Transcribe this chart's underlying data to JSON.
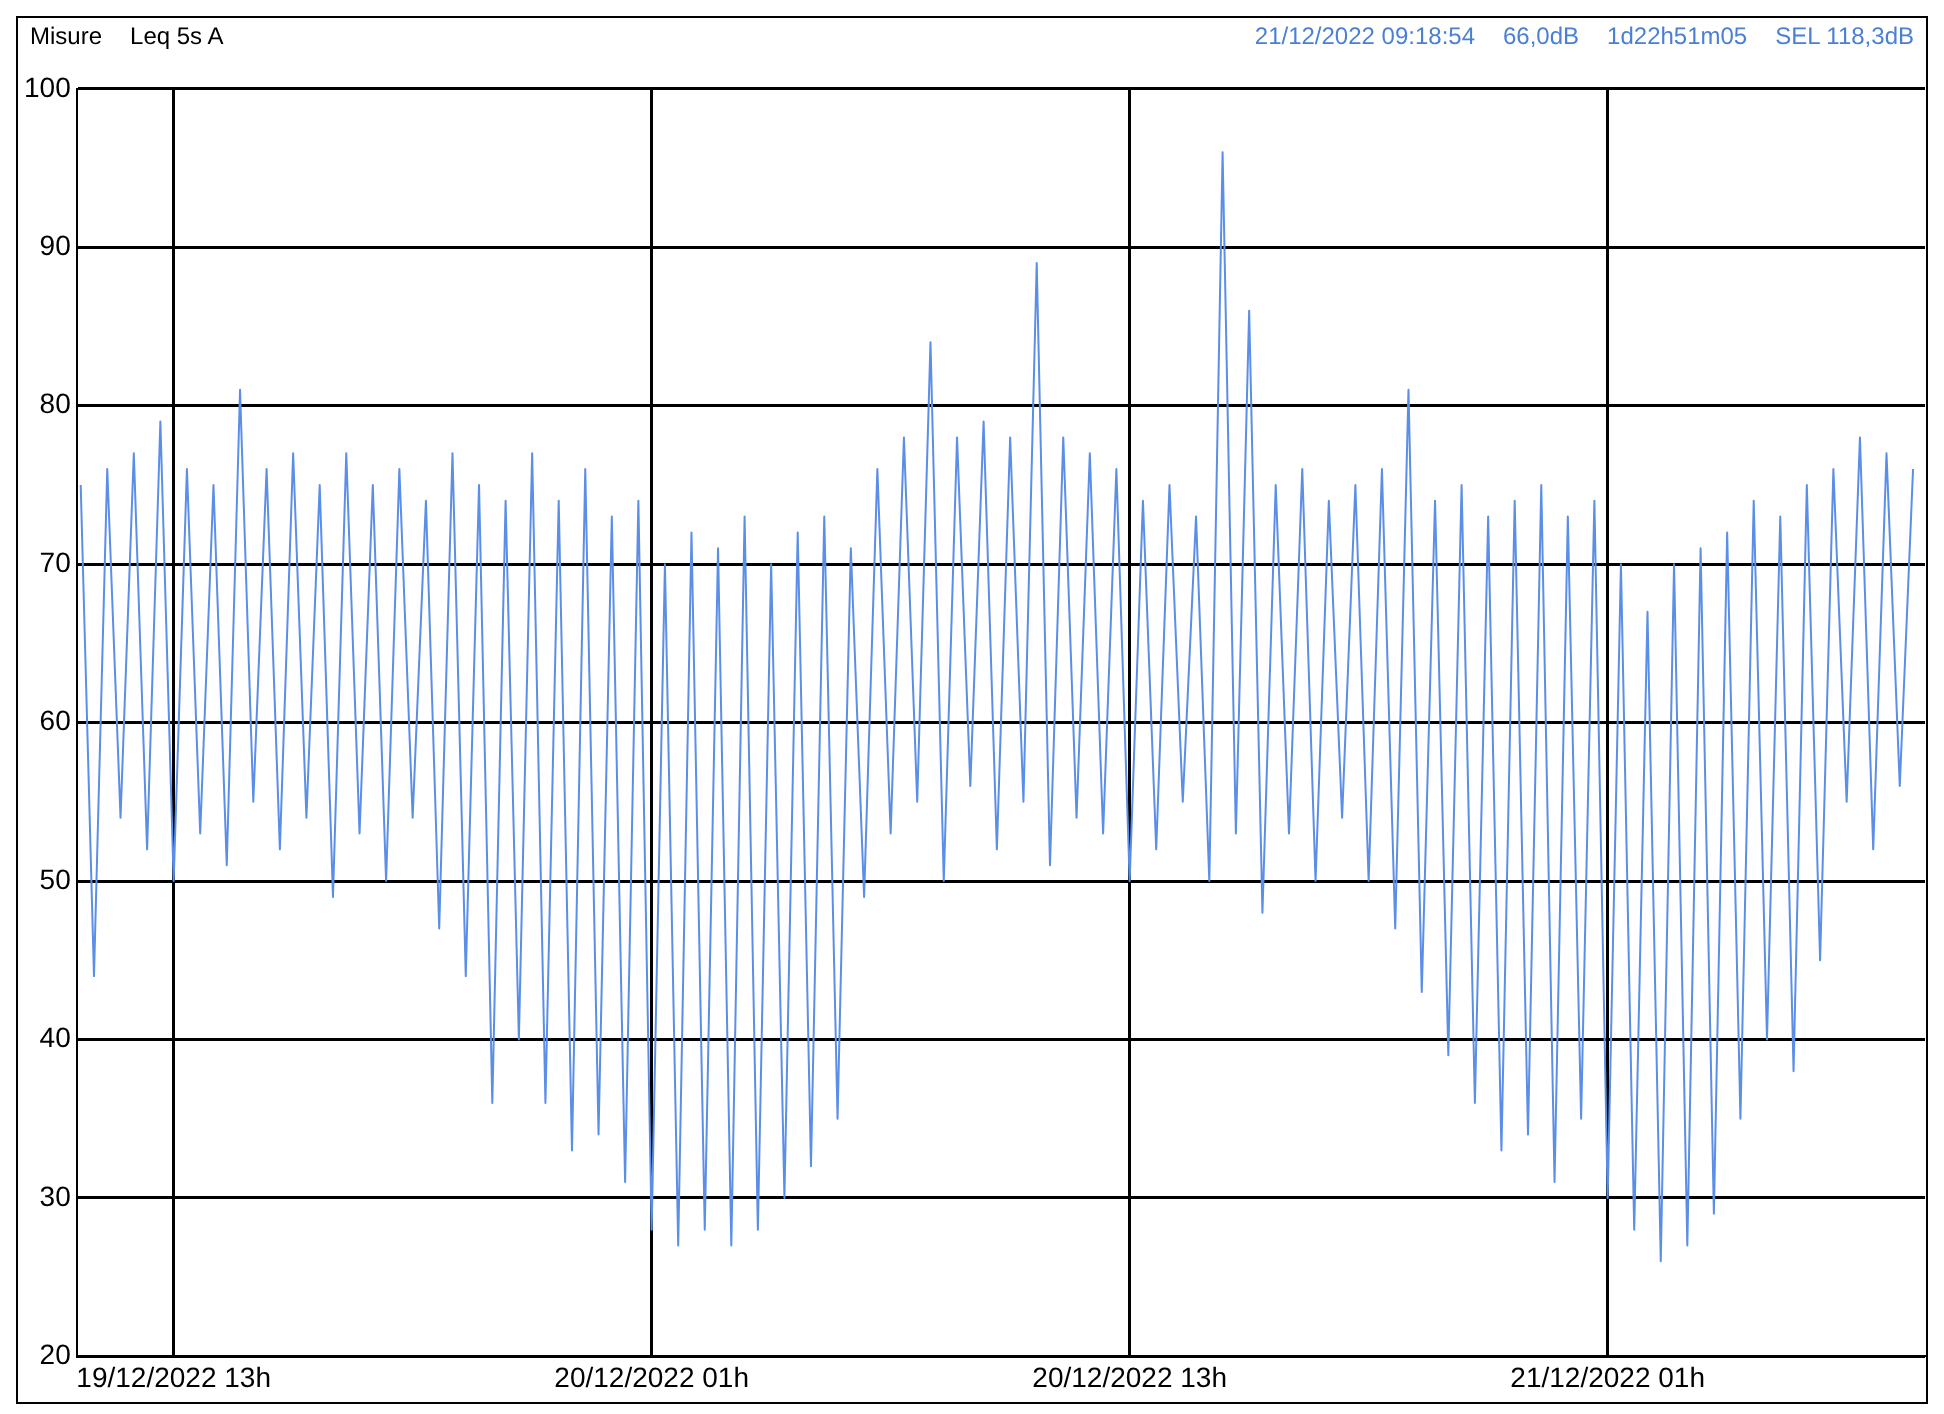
{
  "chart_data": {
    "type": "line",
    "title": "Misure",
    "subtitle": "Leq 5s A",
    "annotations": [
      "21/12/2022 09:18:54",
      "66,0dB",
      "1d22h51m05",
      "SEL 118,3dB"
    ],
    "xlim": [
      "2022-12-19T10:34",
      "2022-12-21T08:58"
    ],
    "xticks": [
      {
        "value": "2022-12-19T13:00",
        "label": "19/12/2022 13h"
      },
      {
        "value": "2022-12-20T01:00",
        "label": "20/12/2022 01h"
      },
      {
        "value": "2022-12-20T13:00",
        "label": "20/12/2022 13h"
      },
      {
        "value": "2022-12-21T01:00",
        "label": "21/12/2022 01h"
      }
    ],
    "ylim": [
      20,
      100
    ],
    "yticks": [
      20,
      30,
      40,
      50,
      60,
      70,
      80,
      90,
      100
    ],
    "grid": true,
    "legend": false,
    "marker": "none",
    "line_style": "solid",
    "series": [
      {
        "color": "#5b8ee6",
        "x": [
          "2022-12-19T10:40",
          "2022-12-19T11:00",
          "2022-12-19T11:20",
          "2022-12-19T11:40",
          "2022-12-19T12:00",
          "2022-12-19T12:20",
          "2022-12-19T12:40",
          "2022-12-19T13:00",
          "2022-12-19T13:20",
          "2022-12-19T13:40",
          "2022-12-19T14:00",
          "2022-12-19T14:20",
          "2022-12-19T14:40",
          "2022-12-19T15:00",
          "2022-12-19T15:20",
          "2022-12-19T15:40",
          "2022-12-19T16:00",
          "2022-12-19T16:20",
          "2022-12-19T16:40",
          "2022-12-19T17:00",
          "2022-12-19T17:20",
          "2022-12-19T17:40",
          "2022-12-19T18:00",
          "2022-12-19T18:20",
          "2022-12-19T18:40",
          "2022-12-19T19:00",
          "2022-12-19T19:20",
          "2022-12-19T19:40",
          "2022-12-19T20:00",
          "2022-12-19T20:20",
          "2022-12-19T20:40",
          "2022-12-19T21:00",
          "2022-12-19T21:20",
          "2022-12-19T21:40",
          "2022-12-19T22:00",
          "2022-12-19T22:20",
          "2022-12-19T22:40",
          "2022-12-19T23:00",
          "2022-12-19T23:20",
          "2022-12-19T23:40",
          "2022-12-20T00:00",
          "2022-12-20T00:20",
          "2022-12-20T00:40",
          "2022-12-20T01:00",
          "2022-12-20T01:20",
          "2022-12-20T01:40",
          "2022-12-20T02:00",
          "2022-12-20T02:20",
          "2022-12-20T02:40",
          "2022-12-20T03:00",
          "2022-12-20T03:20",
          "2022-12-20T03:40",
          "2022-12-20T04:00",
          "2022-12-20T04:20",
          "2022-12-20T04:40",
          "2022-12-20T05:00",
          "2022-12-20T05:20",
          "2022-12-20T05:40",
          "2022-12-20T06:00",
          "2022-12-20T06:20",
          "2022-12-20T06:40",
          "2022-12-20T07:00",
          "2022-12-20T07:20",
          "2022-12-20T07:40",
          "2022-12-20T08:00",
          "2022-12-20T08:20",
          "2022-12-20T08:40",
          "2022-12-20T09:00",
          "2022-12-20T09:20",
          "2022-12-20T09:40",
          "2022-12-20T10:00",
          "2022-12-20T10:20",
          "2022-12-20T10:40",
          "2022-12-20T11:00",
          "2022-12-20T11:20",
          "2022-12-20T11:40",
          "2022-12-20T12:00",
          "2022-12-20T12:20",
          "2022-12-20T12:40",
          "2022-12-20T13:00",
          "2022-12-20T13:20",
          "2022-12-20T13:40",
          "2022-12-20T14:00",
          "2022-12-20T14:20",
          "2022-12-20T14:40",
          "2022-12-20T15:00",
          "2022-12-20T15:20",
          "2022-12-20T15:40",
          "2022-12-20T16:00",
          "2022-12-20T16:20",
          "2022-12-20T16:40",
          "2022-12-20T17:00",
          "2022-12-20T17:20",
          "2022-12-20T17:40",
          "2022-12-20T18:00",
          "2022-12-20T18:20",
          "2022-12-20T18:40",
          "2022-12-20T19:00",
          "2022-12-20T19:20",
          "2022-12-20T19:40",
          "2022-12-20T20:00",
          "2022-12-20T20:20",
          "2022-12-20T20:40",
          "2022-12-20T21:00",
          "2022-12-20T21:20",
          "2022-12-20T21:40",
          "2022-12-20T22:00",
          "2022-12-20T22:20",
          "2022-12-20T22:40",
          "2022-12-20T23:00",
          "2022-12-20T23:20",
          "2022-12-20T23:40",
          "2022-12-21T00:00",
          "2022-12-21T00:20",
          "2022-12-21T00:40",
          "2022-12-21T01:00",
          "2022-12-21T01:20",
          "2022-12-21T01:40",
          "2022-12-21T02:00",
          "2022-12-21T02:20",
          "2022-12-21T02:40",
          "2022-12-21T03:00",
          "2022-12-21T03:20",
          "2022-12-21T03:40",
          "2022-12-21T04:00",
          "2022-12-21T04:20",
          "2022-12-21T04:40",
          "2022-12-21T05:00",
          "2022-12-21T05:20",
          "2022-12-21T05:40",
          "2022-12-21T06:00",
          "2022-12-21T06:20",
          "2022-12-21T06:40",
          "2022-12-21T07:00",
          "2022-12-21T07:20",
          "2022-12-21T07:40",
          "2022-12-21T08:00",
          "2022-12-21T08:20",
          "2022-12-21T08:40"
        ],
        "values": [
          75,
          44,
          76,
          54,
          77,
          52,
          79,
          50,
          76,
          53,
          75,
          51,
          81,
          55,
          76,
          52,
          77,
          54,
          75,
          49,
          77,
          53,
          75,
          50,
          76,
          54,
          74,
          47,
          77,
          44,
          75,
          36,
          74,
          40,
          77,
          36,
          74,
          33,
          76,
          34,
          73,
          31,
          74,
          28,
          70,
          27,
          72,
          28,
          71,
          27,
          73,
          28,
          70,
          30,
          72,
          32,
          73,
          35,
          71,
          49,
          76,
          53,
          78,
          55,
          84,
          50,
          78,
          56,
          79,
          52,
          78,
          55,
          89,
          51,
          78,
          54,
          77,
          53,
          76,
          50,
          74,
          52,
          75,
          55,
          73,
          50,
          96,
          53,
          86,
          48,
          75,
          53,
          76,
          50,
          74,
          54,
          75,
          50,
          76,
          47,
          81,
          43,
          74,
          39,
          75,
          36,
          73,
          33,
          74,
          34,
          75,
          31,
          73,
          35,
          74,
          30,
          70,
          28,
          67,
          26,
          70,
          27,
          71,
          29,
          72,
          35,
          74,
          40,
          73,
          38,
          75,
          45,
          76,
          55,
          78,
          52,
          77,
          56,
          76
        ]
      }
    ]
  }
}
